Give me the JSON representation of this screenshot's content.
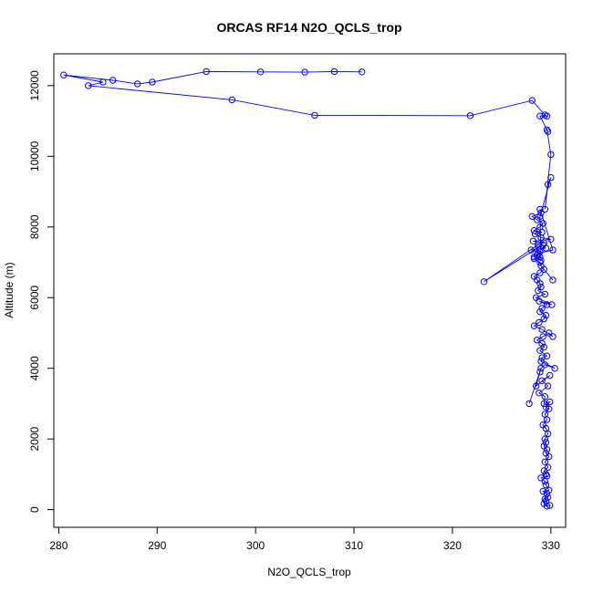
{
  "chart_data": {
    "type": "scatter",
    "title": "ORCAS RF14 N2O_QCLS_trop",
    "xlabel": "N2O_QCLS_trop",
    "ylabel": "Altitude (m)",
    "xlim": [
      279.5,
      331.5
    ],
    "ylim": [
      -500,
      12900
    ],
    "x_ticks": [
      280,
      290,
      300,
      310,
      320,
      330
    ],
    "y_ticks": [
      0,
      2000,
      4000,
      6000,
      8000,
      10000,
      12000
    ],
    "grid": false,
    "color": "#0000ff",
    "series": [
      {
        "x": [
          329.9,
          329.6,
          329.3,
          329.5,
          329.4,
          329.7,
          329.6,
          329.2,
          329.8,
          329.5,
          329.4,
          329.0,
          329.6,
          329.5,
          329.3,
          329.7,
          329.4,
          329.8,
          329.5,
          329.6,
          329.3,
          329.5,
          329.4,
          329.7,
          329.5,
          329.2,
          329.6,
          329.4,
          329.8,
          329.5,
          329.9,
          329.3,
          329.4,
          328.8,
          329.7,
          329.1,
          329.9,
          328.5,
          328.9,
          327.8,
          329.0,
          329.4,
          330.4,
          329.0,
          329.1,
          329.6,
          328.9,
          329.3,
          329.1,
          328.6,
          329.2,
          329.8,
          330.2,
          329.1,
          328.3,
          328.8,
          329.3,
          329.5,
          328.9,
          329.1,
          329.6,
          328.8,
          330.1,
          328.5,
          329.4,
          328.7,
          329.0,
          328.9,
          328.6,
          328.3,
          328.9,
          329.3,
          330.2,
          329.0,
          328.9,
          328.3,
          328.9,
          328.6,
          328.9,
          328.0,
          329.5,
          328.7,
          329.2,
          323.2,
          328.7,
          329.3,
          328.2,
          330.0,
          329.0,
          328.4,
          329.1,
          328.3,
          328.9,
          329.2,
          328.6,
          328.1,
          329.0,
          328.9,
          330.2,
          328.7,
          328.3,
          329.0,
          328.9,
          330.0,
          329.7,
          329.4,
          330.0,
          329.6,
          329.7,
          328.9,
          329.6,
          329.4,
          328.1,
          321.8,
          306.0,
          297.6,
          283.0,
          284.5,
          280.5,
          285.5,
          288.0,
          289.5,
          295.0,
          300.5,
          305.0,
          308.0,
          310.8
        ],
        "y": [
          120,
          100,
          170,
          250,
          300,
          350,
          450,
          520,
          550,
          700,
          800,
          900,
          950,
          1000,
          1100,
          1200,
          1350,
          1500,
          1600,
          1700,
          1800,
          1900,
          2000,
          2150,
          2300,
          2400,
          2550,
          2700,
          2850,
          2900,
          3050,
          3000,
          3200,
          3300,
          3500,
          3650,
          3800,
          3500,
          3900,
          3000,
          4000,
          4100,
          4000,
          4200,
          4300,
          4350,
          4500,
          4600,
          4700,
          4800,
          4900,
          5000,
          4900,
          5100,
          5200,
          5300,
          5400,
          5500,
          5600,
          5700,
          5800,
          5900,
          5800,
          6000,
          6100,
          6200,
          6300,
          6400,
          6500,
          6600,
          6700,
          6800,
          6500,
          6900,
          7000,
          7100,
          7150,
          7200,
          7300,
          7350,
          7400,
          7450,
          7500,
          6450,
          7500,
          7550,
          7600,
          7650,
          7700,
          7800,
          7850,
          7900,
          8000,
          8100,
          8200,
          8300,
          8400,
          8500,
          7350,
          7250,
          7150,
          7050,
          8300,
          9400,
          9200,
          8500,
          10050,
          10750,
          10700,
          11140,
          11140,
          11170,
          11580,
          11150,
          11160,
          11600,
          12000,
          12100,
          12300,
          12150,
          12050,
          12100,
          12400,
          12390,
          12380,
          12400,
          12390
        ],
        "y_scale_note": ""
      }
    ]
  }
}
